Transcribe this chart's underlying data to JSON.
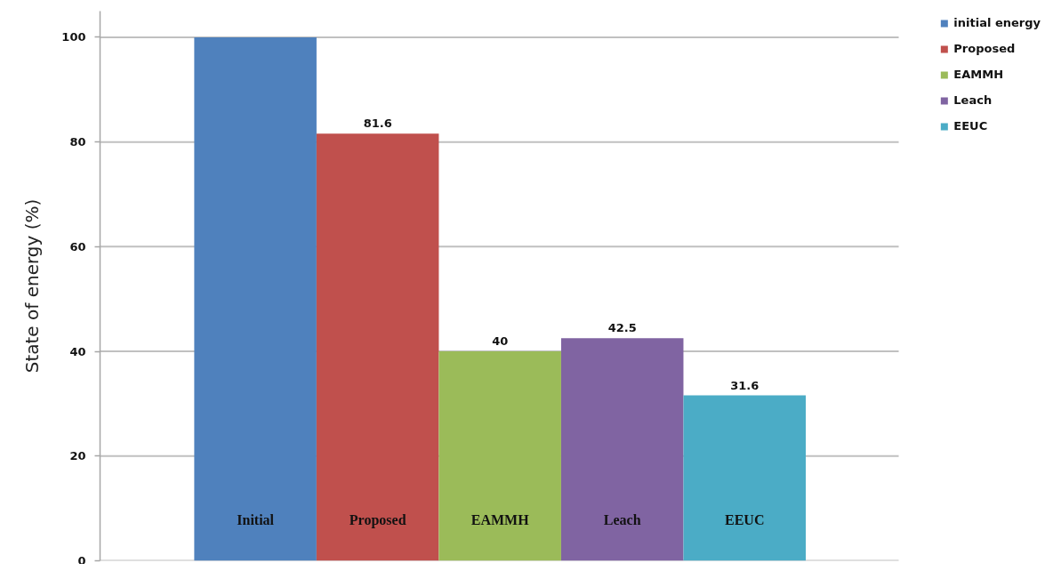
{
  "chart_data": {
    "type": "bar",
    "ylabel": "State of energy (%)",
    "categories": [
      "Initial",
      "Proposed",
      "EAMMH",
      "Leach",
      "EEUC"
    ],
    "series": [
      {
        "name": "initial energy",
        "color": "#4f81bd",
        "values": [
          100,
          null,
          null,
          null,
          null
        ]
      },
      {
        "name": "Proposed",
        "color": "#c0504d",
        "values": [
          null,
          81.6,
          null,
          null,
          null
        ],
        "value_labels": [
          null,
          "81.6",
          null,
          null,
          null
        ]
      },
      {
        "name": "EAMMH",
        "color": "#9bbb59",
        "values": [
          null,
          null,
          40,
          null,
          null
        ],
        "value_labels": [
          null,
          null,
          "40",
          null,
          null
        ]
      },
      {
        "name": "Leach",
        "color": "#8064a2",
        "values": [
          null,
          null,
          null,
          42.5,
          null
        ],
        "value_labels": [
          null,
          null,
          null,
          "42.5",
          null
        ]
      },
      {
        "name": "EEUC",
        "color": "#4bacc6",
        "values": [
          null,
          null,
          null,
          null,
          31.6
        ],
        "value_labels": [
          null,
          null,
          null,
          null,
          "31.6"
        ]
      }
    ],
    "ylim": [
      0,
      105
    ],
    "yticks": [
      0,
      20,
      40,
      60,
      80,
      100
    ],
    "grid": "y",
    "legend": "top right"
  }
}
